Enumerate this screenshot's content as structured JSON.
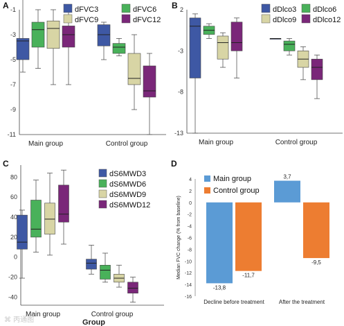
{
  "watermark": "⌘ 丙通图",
  "chart_data": [
    {
      "panel": "A",
      "type": "boxplot",
      "categories": [
        "Main group",
        "Control group"
      ],
      "ylim": [
        -11,
        -1
      ],
      "yticks": [
        -1,
        -3,
        -5,
        -7,
        -9,
        -11
      ],
      "legend_position": "top",
      "series": [
        {
          "name": "dFVC3",
          "color": "#3e58a4",
          "boxes": [
            {
              "min": -6,
              "q1": -5,
              "median": -3.5,
              "q3": -3.3,
              "max": 0
            },
            {
              "min": -5,
              "q1": -3.9,
              "median": -3,
              "q3": -2.2,
              "max": -2
            }
          ]
        },
        {
          "name": "dFVC6",
          "color": "#49b15a",
          "boxes": [
            {
              "min": -5.7,
              "q1": -4,
              "median": -2.6,
              "q3": -2,
              "max": -1
            },
            {
              "min": -4.7,
              "q1": -4.5,
              "median": -4,
              "q3": -3.7,
              "max": -3.3
            }
          ]
        },
        {
          "name": "dFVC9",
          "color": "#d8d5a5",
          "boxes": [
            {
              "min": -7,
              "q1": -4.1,
              "median": -2.5,
              "q3": -1.9,
              "max": -1
            },
            {
              "min": -9,
              "q1": -7,
              "median": -6.5,
              "q3": -4.5,
              "max": -3
            }
          ]
        },
        {
          "name": "dFVC12",
          "color": "#7a2779",
          "boxes": [
            {
              "min": -7,
              "q1": -4,
              "median": -3,
              "q3": -2.3,
              "max": -1.2
            },
            {
              "min": -11,
              "q1": -8,
              "median": -7.5,
              "q3": -5.5,
              "max": -4.5
            }
          ]
        }
      ]
    },
    {
      "panel": "B",
      "type": "boxplot",
      "categories": [
        "Main group",
        "Control group"
      ],
      "ylim": [
        -13,
        2
      ],
      "yticks": [
        2,
        -3,
        -8,
        -13
      ],
      "legend_position": "top",
      "series": [
        {
          "name": "dDlco3",
          "color": "#3e58a4",
          "boxes": [
            {
              "min": -13,
              "q1": -6.3,
              "median": 0,
              "q3": 1,
              "max": 1.5
            },
            {
              "min": -1.5,
              "q1": -1.5,
              "median": -1.5,
              "q3": -1.5,
              "max": -1.5
            }
          ]
        },
        {
          "name": "dDlco6",
          "color": "#49b15a",
          "boxes": [
            {
              "min": -1.5,
              "q1": -1,
              "median": -0.5,
              "q3": 0,
              "max": 0.3
            },
            {
              "min": -3.5,
              "q1": -3,
              "median": -2.2,
              "q3": -1.8,
              "max": -1.5
            }
          ]
        },
        {
          "name": "dDlco9",
          "color": "#d8d5a5",
          "boxes": [
            {
              "min": -5,
              "q1": -4,
              "median": -2,
              "q3": -1.2,
              "max": -0.8
            },
            {
              "min": -6.5,
              "q1": -5,
              "median": -4,
              "q3": -3,
              "max": -2.5
            }
          ]
        },
        {
          "name": "dDlco12",
          "color": "#7a2779",
          "boxes": [
            {
              "min": -6.3,
              "q1": -3,
              "median": -2,
              "q3": 0.5,
              "max": 1
            },
            {
              "min": -8.8,
              "q1": -6.5,
              "median": -5,
              "q3": -4,
              "max": -3.5
            }
          ]
        }
      ]
    },
    {
      "panel": "C",
      "type": "boxplot",
      "categories": [
        "Main group",
        "Control group"
      ],
      "xlabel": "Group",
      "ylim": [
        -48,
        92
      ],
      "yticks": [
        80,
        60,
        40,
        20,
        0,
        -20,
        -40
      ],
      "legend_position": "top-right",
      "series": [
        {
          "name": "dS6MWD3",
          "color": "#3e58a4",
          "boxes": [
            {
              "min": -21,
              "q1": 8,
              "median": 15,
              "q3": 42,
              "max": 47
            },
            {
              "min": -17,
              "q1": -12,
              "median": -6,
              "q3": -2,
              "max": 12
            }
          ]
        },
        {
          "name": "dS6MWD6",
          "color": "#49b15a",
          "boxes": [
            {
              "min": 5,
              "q1": 20,
              "median": 28,
              "q3": 57,
              "max": 77
            },
            {
              "min": -25,
              "q1": -22,
              "median": -13,
              "q3": -8,
              "max": 4
            }
          ]
        },
        {
          "name": "dS6MWD9",
          "color": "#d8d5a5",
          "boxes": [
            {
              "min": 2,
              "q1": 23,
              "median": 38,
              "q3": 54,
              "max": 84
            },
            {
              "min": -30,
              "q1": -25,
              "median": -21,
              "q3": -17,
              "max": -8
            }
          ]
        },
        {
          "name": "dS6MWD12",
          "color": "#7a2779",
          "boxes": [
            {
              "min": 13,
              "q1": 35,
              "median": 43,
              "q3": 72,
              "max": 87
            },
            {
              "min": -45,
              "q1": -36,
              "median": -31,
              "q3": -25,
              "max": -20
            }
          ]
        }
      ]
    },
    {
      "panel": "D",
      "type": "bar",
      "categories": [
        "Decline before treatment",
        "After the treatment"
      ],
      "ylabel": "Median FVC change (% from baseline)",
      "ylim": [
        -16,
        4
      ],
      "yticks": [
        4,
        2,
        0,
        -2,
        -4,
        -6,
        -8,
        -10,
        -12,
        -14,
        -16
      ],
      "legend_position": "top-left",
      "series": [
        {
          "name": "Main group",
          "color": "#5b9bd5",
          "values": [
            -13.8,
            3.7
          ],
          "labels": [
            "-13,8",
            "3,7"
          ]
        },
        {
          "name": "Control group",
          "color": "#ed7d31",
          "values": [
            -11.7,
            -9.5
          ],
          "labels": [
            "-11,7",
            "-9,5"
          ]
        }
      ]
    }
  ]
}
